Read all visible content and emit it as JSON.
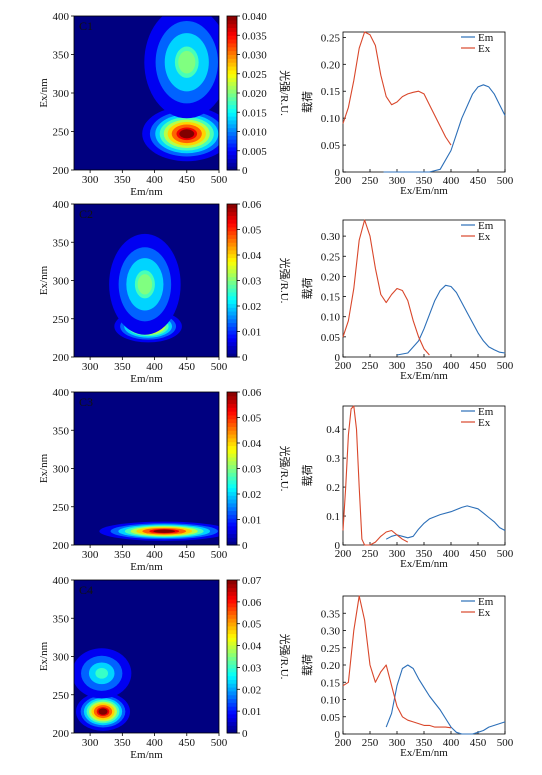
{
  "chart_data": [
    {
      "type": "heatmap",
      "panel": "C1",
      "xlabel": "Em/nm",
      "ylabel": "Ex/nm",
      "xlim": [
        275,
        500
      ],
      "ylim": [
        200,
        400
      ],
      "xticks": [
        300,
        350,
        400,
        450,
        500
      ],
      "yticks": [
        200,
        250,
        300,
        350,
        400
      ],
      "colorbar": {
        "label": "光强/R.U.",
        "min": 0,
        "max": 0.04,
        "ticks": [
          "0",
          "0.005",
          "0.010",
          "0.015",
          "0.020",
          "0.025",
          "0.030",
          "0.035",
          "0.040"
        ]
      },
      "peaks": [
        {
          "em": 450,
          "ex": 247,
          "value": 0.04,
          "sx": 33,
          "sy": 17
        },
        {
          "em": 450,
          "ex": 340,
          "value": 0.02,
          "sx": 38,
          "sy": 42
        }
      ]
    },
    {
      "type": "line",
      "panel": "C1",
      "xlabel": "Ex/Em/nm",
      "ylabel": "载荷",
      "xlim": [
        200,
        500
      ],
      "ylim": [
        0,
        0.26
      ],
      "xticks": [
        200,
        250,
        300,
        350,
        400,
        450,
        500
      ],
      "yticks": [
        0,
        0.05,
        0.1,
        0.15,
        0.2,
        0.25
      ],
      "yticklabels": [
        "0",
        "0.05",
        "0.10",
        "0.15",
        "0.20",
        "0.25"
      ],
      "legend": "top-right",
      "series": [
        {
          "name": "Em",
          "color": "#2c6fb8",
          "x": [
            275,
            300,
            320,
            340,
            360,
            380,
            400,
            420,
            440,
            450,
            460,
            470,
            480,
            490,
            500
          ],
          "y": [
            0,
            0,
            0,
            0,
            0,
            0.005,
            0.04,
            0.1,
            0.145,
            0.158,
            0.162,
            0.158,
            0.145,
            0.125,
            0.105
          ]
        },
        {
          "name": "Ex",
          "color": "#d9472b",
          "x": [
            200,
            210,
            220,
            230,
            240,
            250,
            260,
            270,
            280,
            290,
            300,
            310,
            320,
            330,
            340,
            350,
            360,
            370,
            380,
            390,
            400
          ],
          "y": [
            0.09,
            0.12,
            0.17,
            0.23,
            0.26,
            0.255,
            0.235,
            0.18,
            0.14,
            0.125,
            0.13,
            0.14,
            0.145,
            0.148,
            0.15,
            0.145,
            0.125,
            0.105,
            0.085,
            0.065,
            0.05
          ]
        }
      ]
    },
    {
      "type": "heatmap",
      "panel": "C2",
      "xlabel": "Em/nm",
      "ylabel": "Ex/nm",
      "xlim": [
        275,
        500
      ],
      "ylim": [
        200,
        400
      ],
      "xticks": [
        300,
        350,
        400,
        450,
        500
      ],
      "yticks": [
        200,
        250,
        300,
        350,
        400
      ],
      "colorbar": {
        "label": "光强/R.U.",
        "min": 0,
        "max": 0.06,
        "ticks": [
          "0",
          "0.01",
          "0.02",
          "0.03",
          "0.04",
          "0.05",
          "0.06"
        ]
      },
      "peaks": [
        {
          "em": 390,
          "ex": 240,
          "value": 0.06,
          "sx": 25,
          "sy": 10
        },
        {
          "em": 385,
          "ex": 295,
          "value": 0.03,
          "sx": 32,
          "sy": 38
        }
      ]
    },
    {
      "type": "line",
      "panel": "C2",
      "xlabel": "Ex/Em/nm",
      "ylabel": "载荷",
      "xlim": [
        200,
        500
      ],
      "ylim": [
        0,
        0.34
      ],
      "xticks": [
        200,
        250,
        300,
        350,
        400,
        450,
        500
      ],
      "yticks": [
        0,
        0.05,
        0.1,
        0.15,
        0.2,
        0.25,
        0.3
      ],
      "yticklabels": [
        "0",
        "0.05",
        "0.10",
        "0.15",
        "0.20",
        "0.25",
        "0.30"
      ],
      "legend": "top-right",
      "series": [
        {
          "name": "Em",
          "color": "#2c6fb8",
          "x": [
            300,
            320,
            340,
            350,
            360,
            370,
            380,
            390,
            400,
            410,
            420,
            430,
            440,
            450,
            460,
            470,
            480,
            490,
            500
          ],
          "y": [
            0.005,
            0.01,
            0.04,
            0.07,
            0.105,
            0.14,
            0.165,
            0.178,
            0.175,
            0.16,
            0.135,
            0.11,
            0.085,
            0.06,
            0.04,
            0.025,
            0.018,
            0.012,
            0.01
          ]
        },
        {
          "name": "Ex",
          "color": "#d9472b",
          "x": [
            200,
            210,
            220,
            230,
            240,
            250,
            260,
            270,
            280,
            290,
            300,
            310,
            320,
            330,
            340,
            350,
            360
          ],
          "y": [
            0.05,
            0.09,
            0.17,
            0.29,
            0.34,
            0.3,
            0.22,
            0.155,
            0.135,
            0.155,
            0.17,
            0.165,
            0.14,
            0.09,
            0.05,
            0.02,
            0.005
          ]
        }
      ]
    },
    {
      "type": "heatmap",
      "panel": "C3",
      "xlabel": "Em/nm",
      "ylabel": "Ex/nm",
      "xlim": [
        275,
        500
      ],
      "ylim": [
        200,
        400
      ],
      "xticks": [
        300,
        350,
        400,
        450,
        500
      ],
      "yticks": [
        200,
        250,
        300,
        350,
        400
      ],
      "colorbar": {
        "label": "光强/R.U.",
        "min": 0,
        "max": 0.06,
        "ticks": [
          "0",
          "0.01",
          "0.02",
          "0.03",
          "0.04",
          "0.05",
          "0.06"
        ]
      },
      "peaks": [
        {
          "em": 415,
          "ex": 218,
          "value": 0.06,
          "sx": 48,
          "sy": 6
        }
      ]
    },
    {
      "type": "line",
      "panel": "C3",
      "xlabel": "Ex/Em/nm",
      "ylabel": "载荷",
      "xlim": [
        200,
        500
      ],
      "ylim": [
        0,
        0.48
      ],
      "xticks": [
        200,
        250,
        300,
        350,
        400,
        450,
        500
      ],
      "yticks": [
        0,
        0.1,
        0.2,
        0.3,
        0.4
      ],
      "yticklabels": [
        "0",
        "0.1",
        "0.2",
        "0.3",
        "0.4"
      ],
      "legend": "top-right",
      "series": [
        {
          "name": "Em",
          "color": "#2c6fb8",
          "x": [
            280,
            290,
            300,
            310,
            320,
            330,
            340,
            350,
            360,
            380,
            400,
            420,
            430,
            440,
            450,
            460,
            470,
            480,
            490,
            500
          ],
          "y": [
            0.02,
            0.03,
            0.035,
            0.03,
            0.025,
            0.03,
            0.055,
            0.075,
            0.09,
            0.105,
            0.115,
            0.13,
            0.135,
            0.13,
            0.125,
            0.11,
            0.095,
            0.08,
            0.06,
            0.05
          ]
        },
        {
          "name": "Ex",
          "color": "#d9472b",
          "x": [
            200,
            205,
            210,
            215,
            220,
            225,
            230,
            235,
            240,
            245,
            250,
            260,
            270,
            280,
            290,
            300,
            310,
            320
          ],
          "y": [
            0.05,
            0.2,
            0.38,
            0.47,
            0.48,
            0.4,
            0.2,
            0.02,
            0,
            0,
            0,
            0.01,
            0.03,
            0.045,
            0.05,
            0.035,
            0.02,
            0.01
          ]
        }
      ]
    },
    {
      "type": "heatmap",
      "panel": "C4",
      "xlabel": "Em/nm",
      "ylabel": "Ex/nm",
      "xlim": [
        275,
        500
      ],
      "ylim": [
        200,
        400
      ],
      "xticks": [
        300,
        350,
        400,
        450,
        500
      ],
      "yticks": [
        200,
        250,
        300,
        350,
        400
      ],
      "colorbar": {
        "label": "光强/R.U.",
        "min": 0,
        "max": 0.07,
        "ticks": [
          "0",
          "0.01",
          "0.02",
          "0.03",
          "0.04",
          "0.05",
          "0.06",
          "0.07"
        ]
      },
      "peaks": [
        {
          "em": 320,
          "ex": 228,
          "value": 0.07,
          "sx": 20,
          "sy": 12
        },
        {
          "em": 318,
          "ex": 278,
          "value": 0.03,
          "sx": 28,
          "sy": 20
        }
      ]
    },
    {
      "type": "line",
      "panel": "C4",
      "xlabel": "Ex/Em/nm",
      "ylabel": "载荷",
      "xlim": [
        200,
        500
      ],
      "ylim": [
        0,
        0.4
      ],
      "xticks": [
        200,
        250,
        300,
        350,
        400,
        450,
        500
      ],
      "yticks": [
        0,
        0.05,
        0.1,
        0.15,
        0.2,
        0.25,
        0.3,
        0.35
      ],
      "yticklabels": [
        "0",
        "0.05",
        "0.10",
        "0.15",
        "0.20",
        "0.25",
        "0.30",
        "0.35"
      ],
      "legend": "top-right",
      "series": [
        {
          "name": "Em",
          "color": "#2c6fb8",
          "x": [
            280,
            290,
            300,
            310,
            320,
            330,
            340,
            350,
            360,
            370,
            380,
            390,
            400,
            410,
            420,
            430,
            440,
            450,
            460,
            470,
            480,
            490,
            500
          ],
          "y": [
            0.02,
            0.06,
            0.14,
            0.19,
            0.2,
            0.19,
            0.16,
            0.135,
            0.11,
            0.09,
            0.07,
            0.045,
            0.02,
            0.005,
            0,
            0,
            0,
            0.005,
            0.01,
            0.02,
            0.025,
            0.03,
            0.035
          ]
        },
        {
          "name": "Ex",
          "color": "#d9472b",
          "x": [
            200,
            210,
            220,
            230,
            240,
            250,
            260,
            270,
            280,
            290,
            300,
            310,
            320,
            330,
            340,
            350,
            360,
            370,
            380,
            390,
            400
          ],
          "y": [
            0.14,
            0.15,
            0.3,
            0.4,
            0.33,
            0.2,
            0.15,
            0.18,
            0.2,
            0.14,
            0.08,
            0.05,
            0.04,
            0.035,
            0.03,
            0.025,
            0.025,
            0.02,
            0.02,
            0.02,
            0.018
          ]
        }
      ]
    }
  ]
}
